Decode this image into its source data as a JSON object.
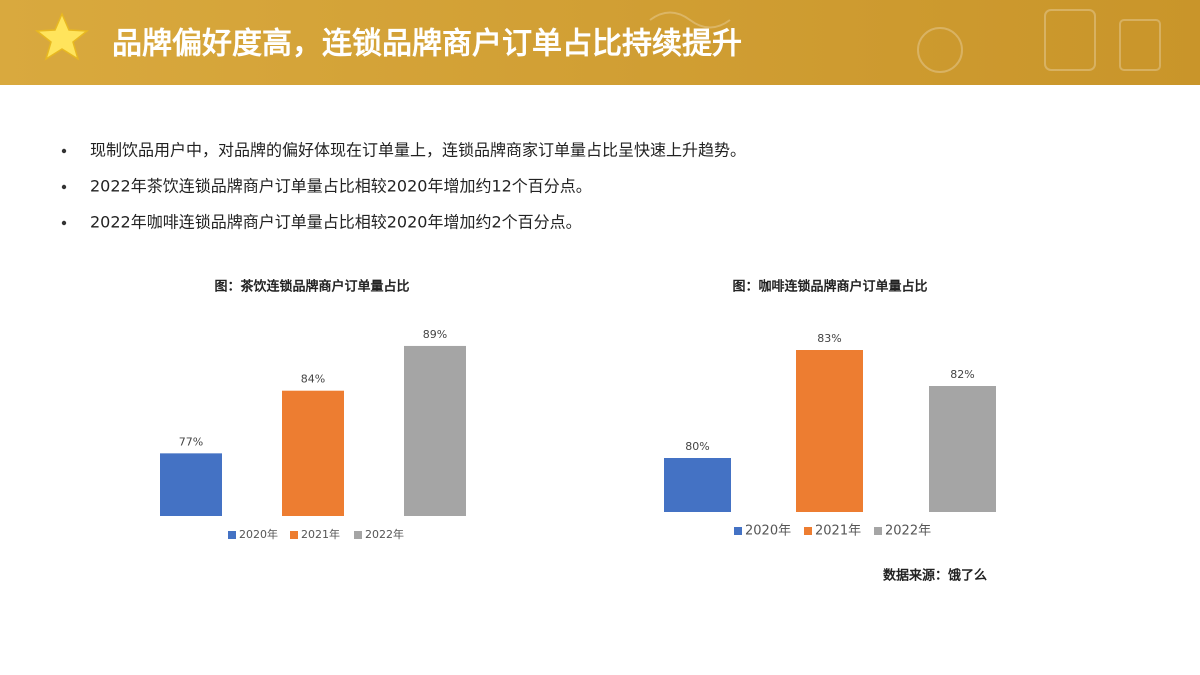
{
  "header": {
    "title": "品牌偏好度高，连锁品牌商户订单占比持续提升"
  },
  "bullets": [
    "现制饮品用户中，对品牌的偏好体现在订单量上，连锁品牌商家订单量占比呈快速上升趋势。",
    "2022年茶饮连锁品牌商户订单量占比相较2020年增加约12个百分点。",
    "2022年咖啡连锁品牌商户订单量占比相较2020年增加约2个百分点。"
  ],
  "chart_data": [
    {
      "type": "bar",
      "title": "图：茶饮连锁品牌商户订单量占比",
      "categories": [
        null
      ],
      "ylim": [
        70,
        90
      ],
      "series": [
        {
          "name": "2020年",
          "color": "#4472c4",
          "values": [
            77
          ],
          "value_labels": [
            "77%"
          ]
        },
        {
          "name": "2021年",
          "color": "#ed7d31",
          "values": [
            84
          ],
          "value_labels": [
            "84%"
          ]
        },
        {
          "name": "2022年",
          "color": "#a5a5a5",
          "values": [
            89
          ],
          "value_labels": [
            "89%"
          ]
        }
      ]
    },
    {
      "type": "bar",
      "title": "图：咖啡连锁品牌商户订单量占比",
      "categories": [
        null
      ],
      "ylim": [
        78.5,
        83.5
      ],
      "series": [
        {
          "name": "2020年",
          "color": "#4472c4",
          "values": [
            80
          ],
          "value_labels": [
            "80%"
          ]
        },
        {
          "name": "2021年",
          "color": "#ed7d31",
          "values": [
            83
          ],
          "value_labels": [
            "83%"
          ]
        },
        {
          "name": "2022年",
          "color": "#a5a5a5",
          "values": [
            82
          ],
          "value_labels": [
            "82%"
          ]
        }
      ]
    }
  ],
  "source": "数据来源：饿了么"
}
